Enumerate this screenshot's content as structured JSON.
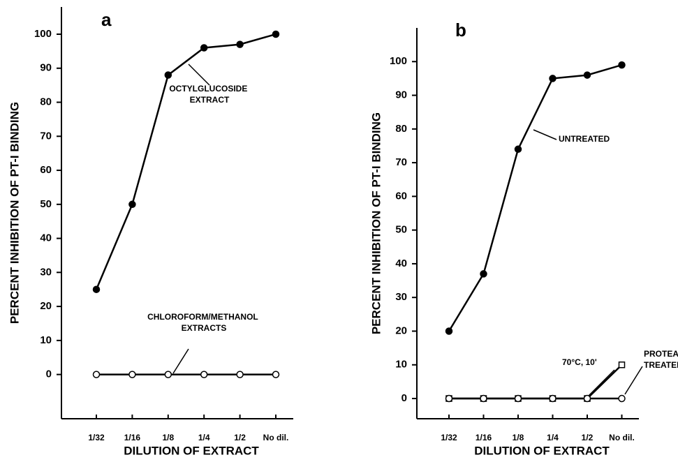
{
  "chart_data": [
    {
      "type": "line",
      "panel": "a",
      "ylabel": "PERCENT INHIBITION OF PT-I BINDING",
      "xlabel": "DILUTION OF EXTRACT",
      "categories": [
        "1/32",
        "1/16",
        "1/8",
        "1/4",
        "1/2",
        "No dil."
      ],
      "ylim": [
        -13,
        108
      ],
      "yticks": [
        0,
        10,
        20,
        30,
        40,
        50,
        60,
        70,
        80,
        90,
        100
      ],
      "series": [
        {
          "name": "OCTYLGLUCOSIDE EXTRACT",
          "color": "#000000",
          "marker": "filled-circle",
          "values": [
            25,
            50,
            88,
            96,
            97,
            100
          ]
        },
        {
          "name": "CHLOROFORM/METHANOL EXTRACTS",
          "color": "#000000",
          "marker": "open-circle",
          "values": [
            0,
            0,
            0,
            0,
            0,
            0
          ]
        }
      ]
    },
    {
      "type": "line",
      "panel": "b",
      "ylabel": "PERCENT INHIBITION OF PT-I BINDING",
      "xlabel": "DILUTION OF EXTRACT",
      "categories": [
        "1/32",
        "1/16",
        "1/8",
        "1/4",
        "1/2",
        "No dil."
      ],
      "ylim": [
        -6,
        110
      ],
      "yticks": [
        0,
        10,
        20,
        30,
        40,
        50,
        60,
        70,
        80,
        90,
        100
      ],
      "series": [
        {
          "name": "UNTREATED",
          "color": "#000000",
          "marker": "filled-circle",
          "values": [
            20,
            37,
            74,
            95,
            96,
            99
          ]
        },
        {
          "name": "70°C, 10'",
          "color": "#000000",
          "marker": "open-square",
          "values": [
            0,
            0,
            0,
            0,
            0,
            10
          ]
        },
        {
          "name": "PROTEASE TREATED",
          "color": "#000000",
          "marker": "open-circle",
          "values": [
            0,
            0,
            0,
            0,
            0,
            0
          ]
        }
      ]
    }
  ]
}
